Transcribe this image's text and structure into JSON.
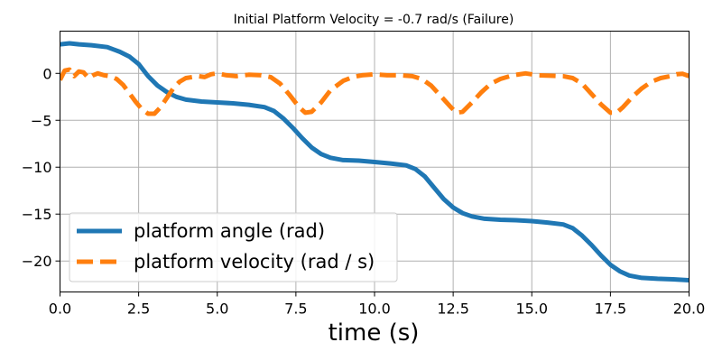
{
  "chart_data": {
    "type": "line",
    "title": "Initial Platform Velocity = -0.7 rad/s (Failure)",
    "xlabel": "time (s)",
    "ylabel": "",
    "xlim": [
      0,
      20
    ],
    "ylim": [
      -23.3,
      4.5
    ],
    "xticks": [
      0,
      2.5,
      5,
      7.5,
      10,
      12.5,
      15,
      17.5,
      20
    ],
    "xtick_labels": [
      "0.0",
      "2.5",
      "5.0",
      "7.5",
      "10.0",
      "12.5",
      "15.0",
      "17.5",
      "20.0"
    ],
    "yticks": [
      0,
      -5,
      -10,
      -15,
      -20
    ],
    "ytick_labels": [
      "0",
      "−5",
      "−10",
      "−15",
      "−20"
    ],
    "grid": true,
    "legend_position": "lower-left",
    "series": [
      {
        "name": "platform angle (rad)",
        "color": "#1f77b4",
        "style": "solid",
        "x": [
          0,
          0.3,
          0.6,
          1.0,
          1.5,
          1.9,
          2.2,
          2.5,
          2.8,
          3.1,
          3.4,
          3.7,
          4.0,
          4.5,
          5.0,
          5.5,
          6.0,
          6.5,
          6.8,
          7.1,
          7.4,
          7.7,
          8.0,
          8.3,
          8.6,
          9.0,
          9.5,
          10.0,
          10.5,
          11.0,
          11.3,
          11.6,
          11.9,
          12.2,
          12.5,
          12.8,
          13.1,
          13.5,
          14.0,
          14.5,
          15.0,
          15.5,
          16.0,
          16.3,
          16.6,
          16.9,
          17.2,
          17.5,
          17.8,
          18.1,
          18.5,
          19.0,
          19.5,
          20.0
        ],
        "y": [
          3.1,
          3.2,
          3.1,
          3.0,
          2.8,
          2.3,
          1.8,
          1.0,
          -0.3,
          -1.3,
          -2.0,
          -2.5,
          -2.8,
          -3.0,
          -3.1,
          -3.2,
          -3.35,
          -3.6,
          -4.0,
          -4.8,
          -5.8,
          -6.9,
          -7.9,
          -8.6,
          -9.0,
          -9.25,
          -9.3,
          -9.45,
          -9.6,
          -9.8,
          -10.2,
          -11.0,
          -12.2,
          -13.4,
          -14.3,
          -14.9,
          -15.25,
          -15.5,
          -15.6,
          -15.65,
          -15.75,
          -15.9,
          -16.1,
          -16.5,
          -17.3,
          -18.3,
          -19.4,
          -20.4,
          -21.1,
          -21.55,
          -21.8,
          -21.9,
          -21.95,
          -22.05
        ]
      },
      {
        "name": "platform velocity (rad / s)",
        "color": "#ff7f0e",
        "style": "dashed",
        "x": [
          0,
          0.15,
          0.3,
          0.45,
          0.6,
          0.75,
          0.9,
          1.05,
          1.2,
          1.4,
          1.6,
          1.8,
          2.0,
          2.2,
          2.4,
          2.6,
          2.8,
          3.0,
          3.2,
          3.4,
          3.6,
          3.8,
          4.0,
          4.2,
          4.4,
          4.6,
          4.8,
          5.0,
          5.3,
          5.6,
          6.0,
          6.4,
          6.7,
          7.0,
          7.3,
          7.6,
          7.8,
          8.0,
          8.3,
          8.6,
          9.0,
          9.3,
          9.6,
          10.0,
          10.4,
          10.8,
          11.2,
          11.5,
          11.8,
          12.1,
          12.4,
          12.6,
          12.8,
          13.1,
          13.4,
          13.7,
          14.0,
          14.4,
          14.8,
          15.2,
          15.6,
          16.0,
          16.3,
          16.6,
          16.9,
          17.2,
          17.5,
          17.7,
          17.9,
          18.2,
          18.5,
          18.8,
          19.1,
          19.4,
          19.6,
          19.8,
          20.0
        ],
        "y": [
          -0.7,
          0.3,
          0.4,
          -0.3,
          0.2,
          0.1,
          -0.5,
          -0.2,
          0.0,
          -0.2,
          -0.3,
          -0.6,
          -1.2,
          -2.1,
          -3.0,
          -3.8,
          -4.3,
          -4.3,
          -3.6,
          -2.6,
          -1.6,
          -0.9,
          -0.5,
          -0.4,
          -0.3,
          -0.4,
          -0.1,
          0.0,
          -0.2,
          -0.3,
          -0.15,
          -0.2,
          -0.4,
          -1.1,
          -2.3,
          -3.6,
          -4.2,
          -4.1,
          -3.1,
          -1.8,
          -0.8,
          -0.4,
          -0.2,
          -0.1,
          -0.2,
          -0.2,
          -0.3,
          -0.6,
          -1.3,
          -2.4,
          -3.5,
          -4.2,
          -4.1,
          -3.1,
          -2.0,
          -1.1,
          -0.6,
          -0.2,
          0.0,
          -0.2,
          -0.25,
          -0.3,
          -0.5,
          -1.1,
          -2.2,
          -3.3,
          -4.2,
          -4.2,
          -3.6,
          -2.5,
          -1.6,
          -0.9,
          -0.5,
          -0.3,
          -0.1,
          -0.05,
          -0.3
        ]
      }
    ]
  }
}
